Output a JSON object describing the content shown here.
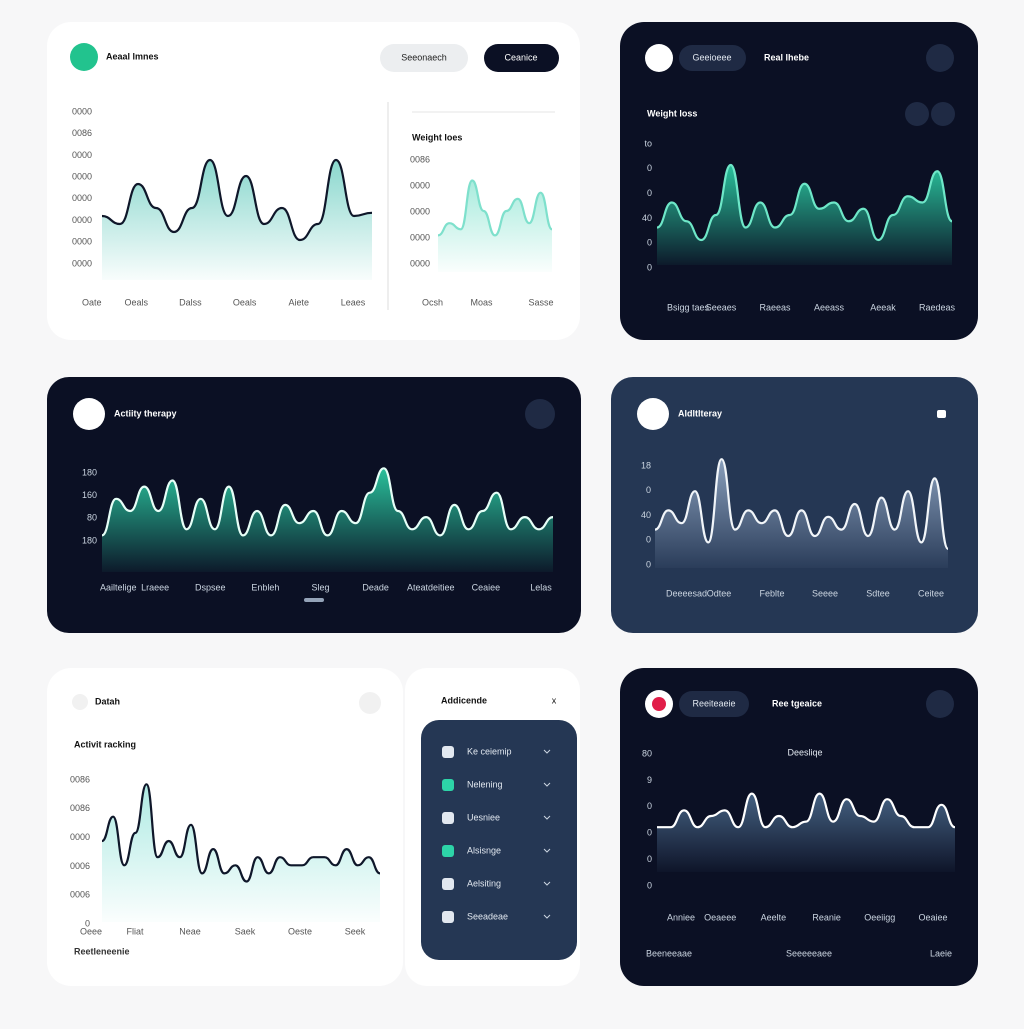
{
  "panels": [
    {
      "title": "Aeaal lmnes",
      "buttons": [
        "Seeonaech",
        "Ceanice"
      ],
      "side_title": "Weight loes"
    },
    {
      "pill": "Geeioeee",
      "label": "Real lhebe",
      "title": "Weight loss"
    },
    {
      "title": "Actiity therapy"
    },
    {
      "title": "Aldltlteray"
    },
    {
      "label": "Datah",
      "title": "Activit racking",
      "footer": "Reetleneenie"
    },
    {
      "title": "Addicende",
      "close": "x",
      "items": [
        "Ke ceiemip",
        "Nelening",
        "Uesniee",
        "Alsisnge",
        "Aelsiting",
        "Seeadeae"
      ]
    },
    {
      "pill": "Reeiteaeie",
      "label": "Ree tgeaice",
      "subtitle": "Deesliqe",
      "footer": [
        "Beeneeaae",
        "Seeeeeaee",
        "Laeie"
      ]
    }
  ],
  "charts": [
    {
      "tick_labels": [
        "0000",
        "0086",
        "0000",
        "0000",
        "0000",
        "0000",
        "0000",
        "0000"
      ],
      "x_labels": [
        "Oate",
        "Oeals",
        "Dalss",
        "Oeals",
        "Aiete",
        "Leaes"
      ],
      "values": [
        4,
        3.5,
        6,
        4.5,
        3,
        4.5,
        7.5,
        4,
        6.5,
        3.5,
        4.5,
        2.5,
        3.5,
        7.5,
        4,
        4.2
      ],
      "ylim": [
        0,
        10
      ],
      "color": "#0f172a",
      "fill": "#7dd3c8"
    },
    {
      "tick_labels": [
        "0086",
        "0000",
        "0000",
        "0000",
        "0000"
      ],
      "x_labels": [
        "Ocsh",
        "Moas",
        "Sasse"
      ],
      "values": [
        3,
        4,
        3.5,
        7.5,
        5,
        3,
        5,
        6,
        4,
        6.5,
        3.5
      ],
      "ylim": [
        0,
        10
      ],
      "color": "#7ee0cc",
      "fill": "#9fe9d9"
    },
    {
      "tick_labels": [
        "to",
        "0",
        "0",
        "40",
        "0",
        "0"
      ],
      "x_labels": [
        "Bsigg taes",
        "Seeaes",
        "Raeeas",
        "Aeeass",
        "Aeeak",
        "Raedeas"
      ],
      "values": [
        3,
        5,
        3.5,
        2,
        4,
        8,
        3,
        5,
        3,
        4,
        6.5,
        4.5,
        5,
        3.5,
        4.5,
        2,
        4,
        5.5,
        5,
        7.5,
        3.5
      ],
      "ylim": [
        0,
        10
      ],
      "color": "#6ee7c8",
      "fill": "#2dd4a8"
    },
    {
      "tick_labels": [
        "180",
        "160",
        "80",
        "180"
      ],
      "x_labels": [
        "Aailtelige",
        "Lraeee",
        "Dspsee",
        "Enbleh",
        "Sleg",
        "Deade",
        "Ateatdeitiee",
        "Ceaiee",
        "Lelas"
      ],
      "values": [
        3,
        6,
        5,
        7,
        5,
        7.5,
        3.5,
        6,
        3.5,
        7,
        3,
        5,
        3,
        5.5,
        4,
        5,
        3,
        5,
        4,
        6.5,
        8.5,
        5,
        3.5,
        4.5,
        3,
        5.5,
        3.5,
        5,
        6.5,
        3.5,
        4.5,
        3.5,
        4.5
      ],
      "ylim": [
        0,
        10
      ],
      "color": "#e6fff7",
      "fill": "#2dd4a8"
    },
    {
      "tick_labels": [
        "18",
        "0",
        "40",
        "0",
        "0"
      ],
      "x_labels": [
        "Deeeesad",
        "Odtee",
        "Feblte",
        "Seeee",
        "Sdtee",
        "Ceitee"
      ],
      "values": [
        3,
        4.5,
        3.5,
        6,
        2,
        8.5,
        3,
        4.5,
        3.5,
        4.5,
        2.5,
        4.5,
        2.5,
        4,
        3,
        5,
        2.5,
        5.5,
        3,
        6,
        2,
        7,
        1.5
      ],
      "ylim": [
        0,
        10
      ],
      "color": "#f1f5f9",
      "fill": "#93a9c6"
    },
    {
      "tick_labels": [
        "0086",
        "0086",
        "0000",
        "0006",
        "0006",
        "0"
      ],
      "x_labels": [
        "Oeee",
        "Fliat",
        "Neae",
        "Saek",
        "Oeste",
        "Seek"
      ],
      "values": [
        5,
        6.5,
        3.5,
        5.5,
        8.5,
        4,
        5,
        4,
        6,
        3,
        4.5,
        3,
        3.5,
        2.5,
        4,
        3,
        4,
        3.5,
        3.5,
        4,
        4,
        3.5,
        4.5,
        3.5,
        4,
        3
      ],
      "ylim": [
        0,
        10
      ],
      "color": "#0f172a",
      "fill": "#a5e8e0"
    },
    {
      "tick_labels": [
        "80",
        "9",
        "0",
        "0",
        "0",
        "0"
      ],
      "x_labels": [
        "Anniee",
        "Oeaeee",
        "Aeelte",
        "Reanie",
        "Oeeiigg",
        "Oeaiee"
      ],
      "values": [
        4,
        4,
        5.5,
        4,
        5,
        5.5,
        4,
        7,
        4,
        5,
        4,
        4.5,
        7,
        4.5,
        6.5,
        5,
        4.5,
        6.5,
        5,
        4,
        4,
        6,
        4
      ],
      "ylim": [
        0,
        10
      ],
      "color": "#ffffff",
      "fill": "#4b6a8c"
    }
  ]
}
